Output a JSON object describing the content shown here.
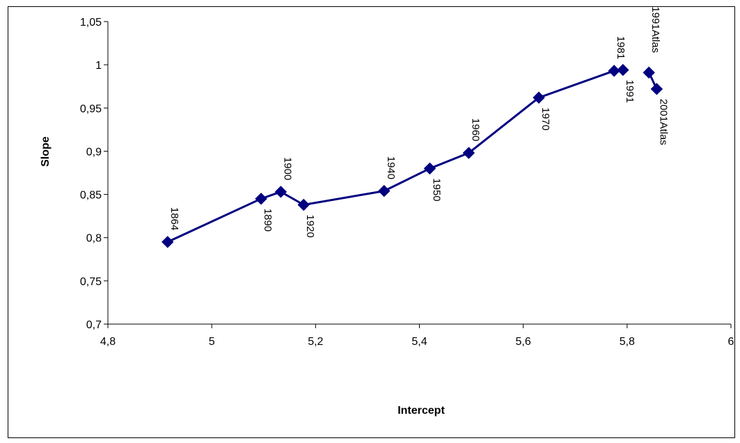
{
  "chart_data": {
    "type": "line",
    "title": "",
    "xlabel": "Intercept",
    "ylabel": "Slope",
    "xlim": [
      4.8,
      6
    ],
    "ylim": [
      0.7,
      1.05
    ],
    "x_ticks": [
      "4,8",
      "5",
      "5,2",
      "5,4",
      "5,6",
      "5,8",
      "6"
    ],
    "y_ticks": [
      "0,7",
      "0,75",
      "0,8",
      "0,85",
      "0,9",
      "0,95",
      "1",
      "1,05"
    ],
    "grid": false,
    "legend": "none",
    "series": [
      {
        "color": "#000080",
        "marker": "diamond",
        "points": [
          {
            "label": "1864",
            "x": 4.915,
            "y": 0.795
          },
          {
            "label": "1890",
            "x": 5.095,
            "y": 0.845
          },
          {
            "label": "1900",
            "x": 5.133,
            "y": 0.853
          },
          {
            "label": "1920",
            "x": 5.177,
            "y": 0.838
          },
          {
            "label": "1940",
            "x": 5.332,
            "y": 0.854
          },
          {
            "label": "1950",
            "x": 5.42,
            "y": 0.88
          },
          {
            "label": "1960",
            "x": 5.495,
            "y": 0.898
          },
          {
            "label": "1970",
            "x": 5.63,
            "y": 0.962
          },
          {
            "label": "1981",
            "x": 5.775,
            "y": 0.993
          },
          {
            "label": "1991",
            "x": 5.792,
            "y": 0.994
          }
        ]
      },
      {
        "color": "#000080",
        "marker": "diamond",
        "points": [
          {
            "label": "1991Atlas",
            "x": 5.842,
            "y": 0.991
          },
          {
            "label": "2001Atlas",
            "x": 5.857,
            "y": 0.972
          }
        ]
      }
    ]
  }
}
